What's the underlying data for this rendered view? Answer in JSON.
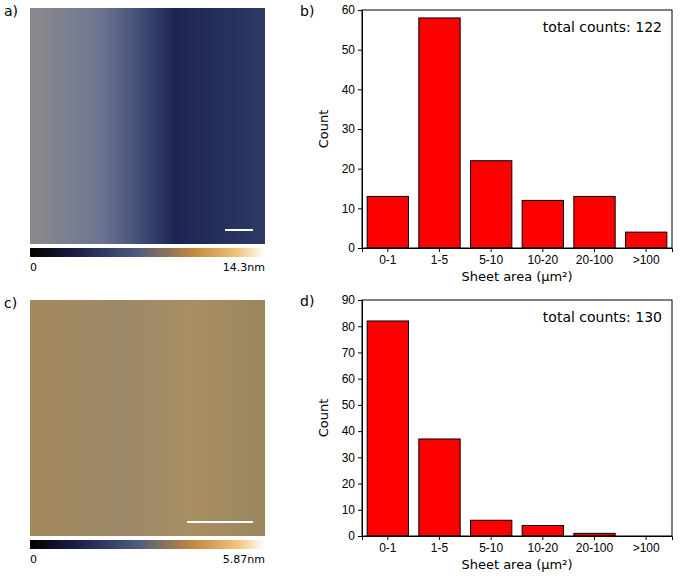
{
  "chart_data": [
    {
      "type": "image",
      "panel_label": "a)",
      "colorbar_lim": [
        0,
        14.3
      ],
      "colorbar_ticks": [
        0,
        {
          "value": 14.3,
          "label": "14.3nm"
        }
      ]
    },
    {
      "type": "bar",
      "panel_label": "b)",
      "categories": [
        "0-1",
        "1-5",
        "5-10",
        "10-20",
        "20-100",
        ">100"
      ],
      "values": [
        13,
        58,
        22,
        12,
        13,
        4
      ],
      "color": "#ff0000",
      "xlabel": "Sheet area (μm²)",
      "ylabel": "Count",
      "ylim": [
        0,
        60
      ],
      "yticks": [
        0,
        10,
        20,
        30,
        40,
        50,
        60
      ],
      "grid": false,
      "annotations": [
        "total counts: 122"
      ]
    },
    {
      "type": "image",
      "panel_label": "c)",
      "colorbar_lim": [
        0,
        5.87
      ],
      "colorbar_ticks": [
        0,
        {
          "value": 5.87,
          "label": "5.87nm"
        }
      ]
    },
    {
      "type": "bar",
      "panel_label": "d)",
      "categories": [
        "0-1",
        "1-5",
        "5-10",
        "10-20",
        "20-100",
        ">100"
      ],
      "values": [
        82,
        37,
        6,
        4,
        1,
        0
      ],
      "color": "#ff0000",
      "xlabel": "Sheet area (μm²)",
      "ylabel": "Count",
      "ylim": [
        0,
        90
      ],
      "yticks": [
        0,
        10,
        20,
        30,
        40,
        50,
        60,
        70,
        80,
        90
      ],
      "grid": false,
      "annotations": [
        "total counts: 130"
      ]
    }
  ]
}
